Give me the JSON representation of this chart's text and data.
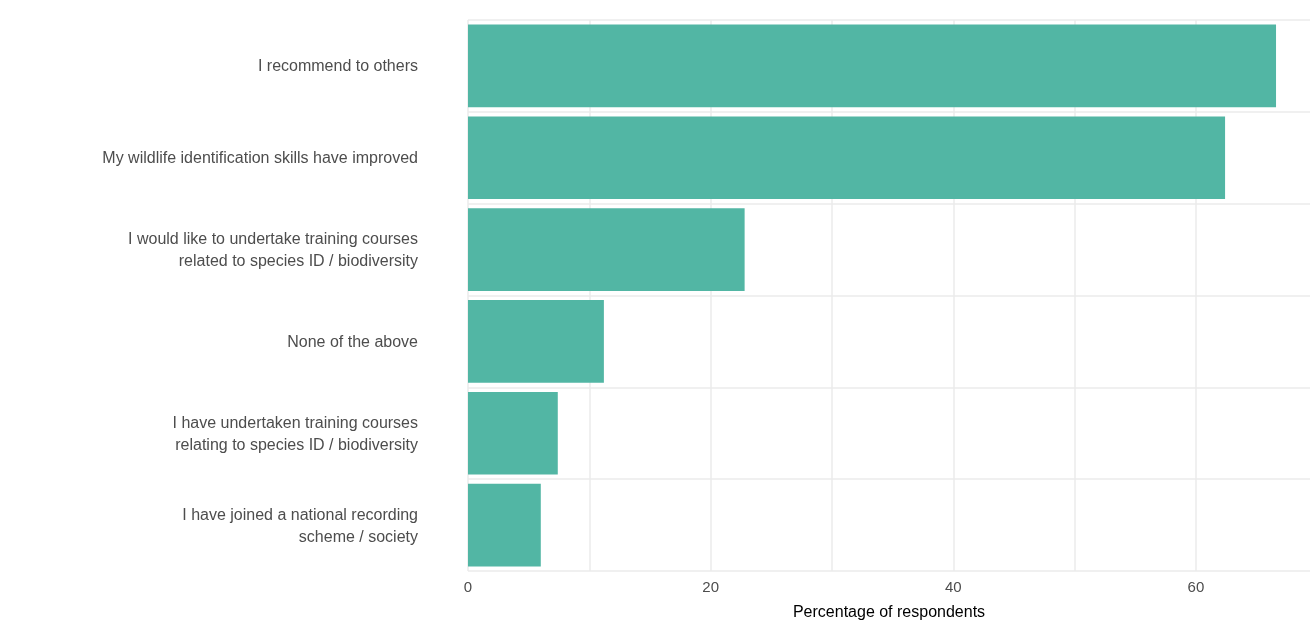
{
  "chart_data": {
    "type": "bar",
    "orientation": "horizontal",
    "categories": [
      "I recommend to others",
      "My wildlife identification skills have improved",
      "I would like to undertake training courses\nrelated to species ID / biodiversity",
      "None of the above",
      "I have undertaken training courses\nrelating to species ID / biodiversity",
      "I have joined a national recording\nscheme / society"
    ],
    "values": [
      66.6,
      62.4,
      22.8,
      11.2,
      7.4,
      6.0
    ],
    "color": "#52b6a4",
    "xlabel": "Percentage of respondents",
    "xlim": [
      0,
      69.4
    ],
    "xticks": [
      0,
      {
        "value": 10,
        "label": null
      },
      20,
      {
        "value": 30,
        "label": null
      },
      40,
      {
        "value": 50,
        "label": null
      },
      60
    ],
    "grid": true
  }
}
